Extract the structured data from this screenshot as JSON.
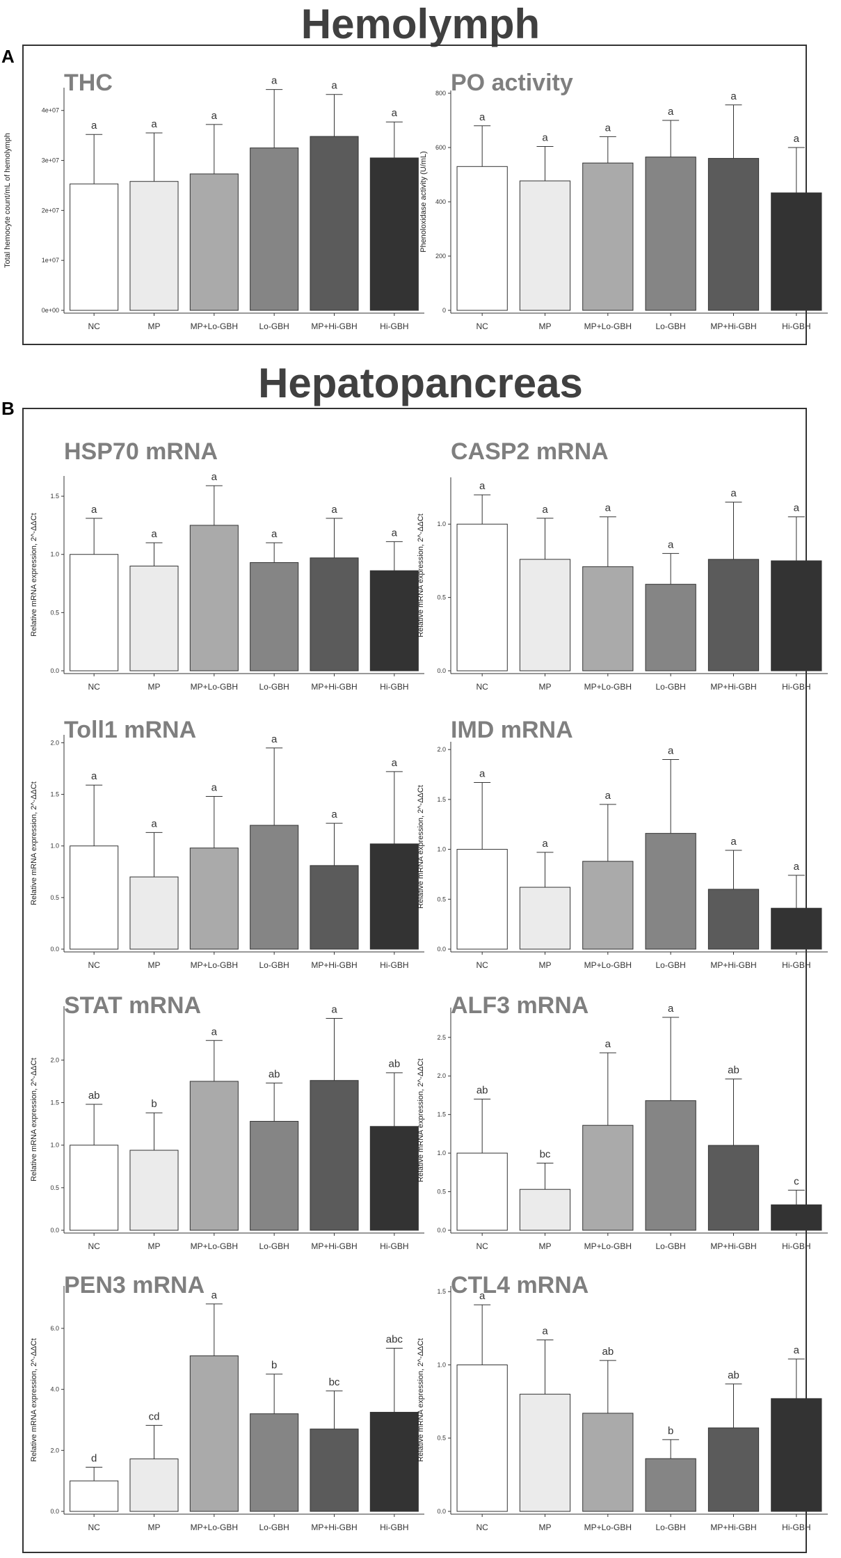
{
  "sections": [
    {
      "title": "Hemolymph",
      "letter": "A"
    },
    {
      "title": "Hepatopancreas",
      "letter": "B"
    }
  ],
  "colors": [
    "#ffffff",
    "#ebebeb",
    "#aaaaaa",
    "#858585",
    "#5b5b5b",
    "#333333"
  ],
  "chart_data": [
    {
      "type": "bar",
      "title": "THC",
      "ylabel": "Total hemocyte count/mL of hemolymph",
      "categories": [
        "NC",
        "MP",
        "MP+Lo-GBH",
        "Lo-GBH",
        "MP+Hi-GBH",
        "Hi-GBH"
      ],
      "values": [
        25300000,
        25800000,
        27300000,
        32500000,
        34800000,
        30500000
      ],
      "errors": [
        9900000,
        9700000,
        9900000,
        11700000,
        8400000,
        7200000
      ],
      "letters": [
        "a",
        "a",
        "a",
        "a",
        "a",
        "a"
      ],
      "ylim": [
        0,
        44000000
      ],
      "ticks": [
        0,
        10000000,
        20000000,
        30000000,
        40000000
      ],
      "tick_labels": [
        "0e+00",
        "1e+07",
        "2e+07",
        "3e+07",
        "4e+07"
      ]
    },
    {
      "type": "bar",
      "title": "PO activity",
      "ylabel": "Phenoloxidase activity (U/mL)",
      "categories": [
        "NC",
        "MP",
        "MP+Lo-GBH",
        "Lo-GBH",
        "MP+Hi-GBH",
        "Hi-GBH"
      ],
      "values": [
        530,
        477,
        543,
        565,
        560,
        433
      ],
      "errors": [
        150,
        127,
        97,
        135,
        197,
        167
      ],
      "letters": [
        "a",
        "a",
        "a",
        "a",
        "a",
        "a"
      ],
      "ylim": [
        0,
        800
      ],
      "ticks": [
        0,
        200,
        400,
        600,
        800
      ],
      "tick_labels": [
        "0",
        "200",
        "400",
        "600",
        "800"
      ]
    },
    {
      "type": "bar",
      "title": "HSP70 mRNA",
      "ylabel": "Relative mRNA expression, 2^-ΔΔCt",
      "categories": [
        "NC",
        "MP",
        "MP+Lo-GBH",
        "Lo-GBH",
        "MP+Hi-GBH",
        "Hi-GBH"
      ],
      "values": [
        1.0,
        0.9,
        1.25,
        0.93,
        0.97,
        0.86
      ],
      "errors": [
        0.31,
        0.2,
        0.34,
        0.17,
        0.34,
        0.25
      ],
      "letters": [
        "a",
        "a",
        "a",
        "a",
        "a",
        "a"
      ],
      "ylim": [
        0,
        1.65
      ],
      "ticks": [
        0,
        0.5,
        1.0,
        1.5
      ],
      "tick_labels": [
        "0.0",
        "0.5",
        "1.0",
        "1.5"
      ]
    },
    {
      "type": "bar",
      "title": "CASP2 mRNA",
      "ylabel": "Relative mRNA expression, 2^-ΔΔCt",
      "categories": [
        "NC",
        "MP",
        "MP+Lo-GBH",
        "Lo-GBH",
        "MP+Hi-GBH",
        "Hi-GBH"
      ],
      "values": [
        1.0,
        0.76,
        0.71,
        0.59,
        0.76,
        0.75
      ],
      "errors": [
        0.2,
        0.28,
        0.34,
        0.21,
        0.39,
        0.3
      ],
      "letters": [
        "a",
        "a",
        "a",
        "a",
        "a",
        "a"
      ],
      "ylim": [
        0,
        1.3
      ],
      "ticks": [
        0,
        0.5,
        1.0
      ],
      "tick_labels": [
        "0.0",
        "0.5",
        "1.0"
      ]
    },
    {
      "type": "bar",
      "title": "Toll1 mRNA",
      "ylabel": "Relative mRNA expression, 2^-ΔΔCt",
      "categories": [
        "NC",
        "MP",
        "MP+Lo-GBH",
        "Lo-GBH",
        "MP+Hi-GBH",
        "Hi-GBH"
      ],
      "values": [
        1.0,
        0.7,
        0.98,
        1.2,
        0.81,
        1.02
      ],
      "errors": [
        0.59,
        0.43,
        0.5,
        0.75,
        0.41,
        0.7
      ],
      "letters": [
        "a",
        "a",
        "a",
        "a",
        "a",
        "a"
      ],
      "ylim": [
        0,
        2.05
      ],
      "ticks": [
        0,
        0.5,
        1.0,
        1.5,
        2.0
      ],
      "tick_labels": [
        "0.0",
        "0.5",
        "1.0",
        "1.5",
        "2.0"
      ]
    },
    {
      "type": "bar",
      "title": "IMD mRNA",
      "ylabel": "Relative mRNA expression, 2^-ΔΔCt",
      "categories": [
        "NC",
        "MP",
        "MP+Lo-GBH",
        "Lo-GBH",
        "MP+Hi-GBH",
        "Hi-GBH"
      ],
      "values": [
        1.0,
        0.62,
        0.88,
        1.16,
        0.6,
        0.41
      ],
      "errors": [
        0.67,
        0.35,
        0.57,
        0.74,
        0.39,
        0.33
      ],
      "letters": [
        "a",
        "a",
        "a",
        "a",
        "a",
        "a"
      ],
      "ylim": [
        0,
        2.05
      ],
      "ticks": [
        0,
        0.5,
        1.0,
        1.5,
        2.0
      ],
      "tick_labels": [
        "0.0",
        "0.5",
        "1.0",
        "1.5",
        "2.0"
      ]
    },
    {
      "type": "bar",
      "title": "STAT mRNA",
      "ylabel": "Relative mRNA expression, 2^-ΔΔCt",
      "categories": [
        "NC",
        "MP",
        "MP+Lo-GBH",
        "Lo-GBH",
        "MP+Hi-GBH",
        "Hi-GBH"
      ],
      "values": [
        1.0,
        0.94,
        1.75,
        1.28,
        1.76,
        1.22
      ],
      "errors": [
        0.48,
        0.44,
        0.48,
        0.45,
        0.73,
        0.63
      ],
      "letters": [
        "ab",
        "b",
        "a",
        "ab",
        "a",
        "ab"
      ],
      "ylim": [
        0,
        2.6
      ],
      "ticks": [
        0,
        0.5,
        1.0,
        1.5,
        2.0
      ],
      "tick_labels": [
        "0.0",
        "0.5",
        "1.0",
        "1.5",
        "2.0"
      ]
    },
    {
      "type": "bar",
      "title": "ALF3 mRNA",
      "ylabel": "Relative mRNA expression, 2^-ΔΔCt",
      "categories": [
        "NC",
        "MP",
        "MP+Lo-GBH",
        "Lo-GBH",
        "MP+Hi-GBH",
        "Hi-GBH"
      ],
      "values": [
        1.0,
        0.53,
        1.36,
        1.68,
        1.1,
        0.33
      ],
      "errors": [
        0.7,
        0.34,
        0.94,
        1.08,
        0.86,
        0.19
      ],
      "letters": [
        "ab",
        "bc",
        "a",
        "a",
        "ab",
        "c"
      ],
      "ylim": [
        0,
        2.85
      ],
      "ticks": [
        0,
        0.5,
        1.0,
        1.5,
        2.0,
        2.5
      ],
      "tick_labels": [
        "0.0",
        "0.5",
        "1.0",
        "1.5",
        "2.0",
        "2.5"
      ]
    },
    {
      "type": "bar",
      "title": "PEN3 mRNA",
      "ylabel": "Relative mRNA expression, 2^-ΔΔCt",
      "categories": [
        "NC",
        "MP",
        "MP+Lo-GBH",
        "Lo-GBH",
        "MP+Hi-GBH",
        "Hi-GBH"
      ],
      "values": [
        1.0,
        1.72,
        5.1,
        3.2,
        2.7,
        3.25
      ],
      "errors": [
        0.45,
        1.1,
        1.7,
        1.3,
        1.25,
        2.1
      ],
      "letters": [
        "d",
        "cd",
        "a",
        "b",
        "bc",
        "abc"
      ],
      "ylim": [
        0,
        7.3
      ],
      "ticks": [
        0,
        2.0,
        4.0,
        6.0
      ],
      "tick_labels": [
        "0.0",
        "2.0",
        "4.0",
        "6.0"
      ]
    },
    {
      "type": "bar",
      "title": "CTL4 mRNA",
      "ylabel": "Relative mRNA expression, 2^-ΔΔCt",
      "categories": [
        "NC",
        "MP",
        "MP+Lo-GBH",
        "Lo-GBH",
        "MP+Hi-GBH",
        "Hi-GBH"
      ],
      "values": [
        1.0,
        0.8,
        0.67,
        0.36,
        0.57,
        0.77
      ],
      "errors": [
        0.41,
        0.37,
        0.36,
        0.13,
        0.3,
        0.27
      ],
      "letters": [
        "a",
        "a",
        "ab",
        "b",
        "ab",
        "a"
      ],
      "ylim": [
        0,
        1.52
      ],
      "ticks": [
        0,
        0.5,
        1.0,
        1.5
      ],
      "tick_labels": [
        "0.0",
        "0.5",
        "1.0",
        "1.5"
      ]
    }
  ]
}
